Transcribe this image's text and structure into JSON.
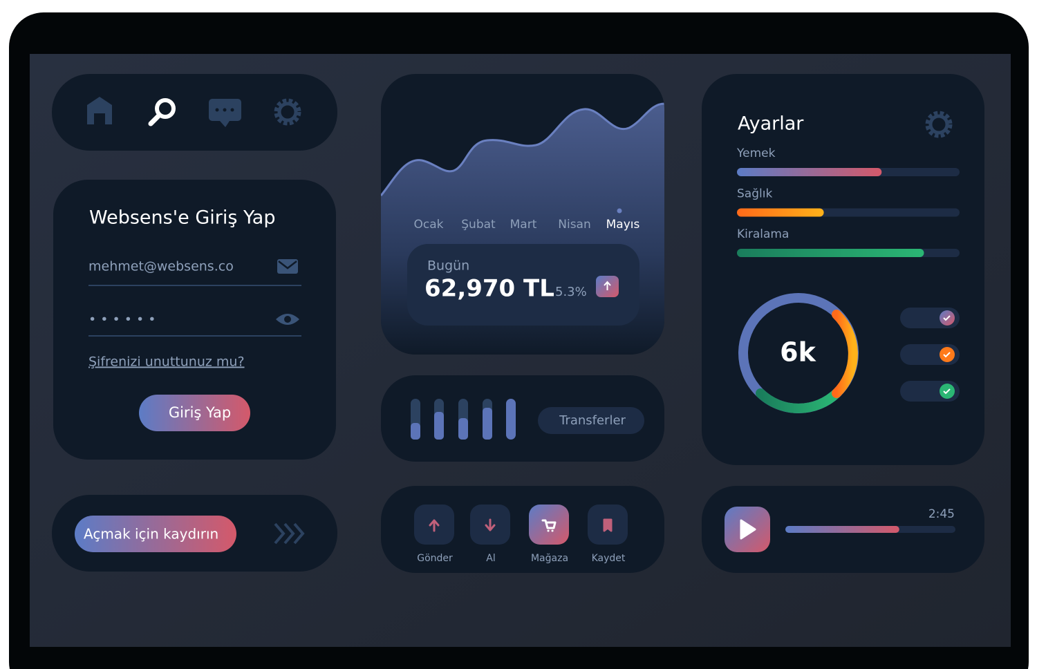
{
  "nav": {
    "items": []
  },
  "login": {
    "title": "Websens'e Giriş Yap",
    "email": "mehmet@websens.co",
    "password": "• • • • • •",
    "forgot": "Şifrenizi unuttunuz mu?",
    "button": "Giriş Yap"
  },
  "slide": {
    "label": "Açmak için kaydırın"
  },
  "chart": {
    "months": [
      "Ocak",
      "Şubat",
      "Mart",
      "Nisan",
      "Mayıs"
    ],
    "today_label": "Bugün",
    "amount": "62,970 TL",
    "change": "5.3%"
  },
  "transfers": {
    "label": "Transferler"
  },
  "actions": {
    "labels": [
      "Gönder",
      "Al",
      "Mağaza",
      "Kaydet"
    ]
  },
  "settings": {
    "title": "Ayarlar",
    "items": [
      {
        "name": "Yemek",
        "value": 65
      },
      {
        "name": "Sağlık",
        "value": 39
      },
      {
        "name": "Kiralama",
        "value": 84
      }
    ],
    "ring_label": "6k"
  },
  "player": {
    "time": "2:45",
    "progress": 67
  }
}
